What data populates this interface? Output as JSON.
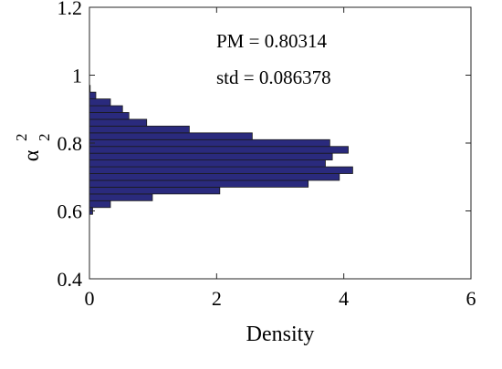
{
  "chart_data": {
    "type": "bar",
    "orientation": "horizontal",
    "xlabel": "Density",
    "ylabel": "α",
    "ylabel_superscript": "2",
    "ylabel_subscript": "2",
    "xlim": [
      0,
      6
    ],
    "ylim": [
      0.4,
      1.2
    ],
    "xticks": [
      "0",
      "2",
      "4",
      "6"
    ],
    "yticks": [
      "0.4",
      "0.6",
      "0.8",
      "1",
      "1.2"
    ],
    "grid": false,
    "bar_color": "#2a2a7d",
    "bar_edge_color": "#1a1a1a",
    "bin_width": 0.02,
    "bins": [
      {
        "y": 0.6,
        "value": 0.05
      },
      {
        "y": 0.62,
        "value": 0.33
      },
      {
        "y": 0.64,
        "value": 0.99
      },
      {
        "y": 0.66,
        "value": 2.05
      },
      {
        "y": 0.68,
        "value": 3.44
      },
      {
        "y": 0.7,
        "value": 3.93
      },
      {
        "y": 0.72,
        "value": 4.14
      },
      {
        "y": 0.74,
        "value": 3.71
      },
      {
        "y": 0.76,
        "value": 3.82
      },
      {
        "y": 0.78,
        "value": 4.07
      },
      {
        "y": 0.8,
        "value": 3.78
      },
      {
        "y": 0.82,
        "value": 2.56
      },
      {
        "y": 0.84,
        "value": 1.57
      },
      {
        "y": 0.86,
        "value": 0.9
      },
      {
        "y": 0.88,
        "value": 0.62
      },
      {
        "y": 0.9,
        "value": 0.52
      },
      {
        "y": 0.92,
        "value": 0.33
      },
      {
        "y": 0.94,
        "value": 0.1
      },
      {
        "y": 0.96,
        "value": 0.01
      }
    ],
    "annotations": [
      "PM = 0.80314",
      "std = 0.086378"
    ]
  }
}
